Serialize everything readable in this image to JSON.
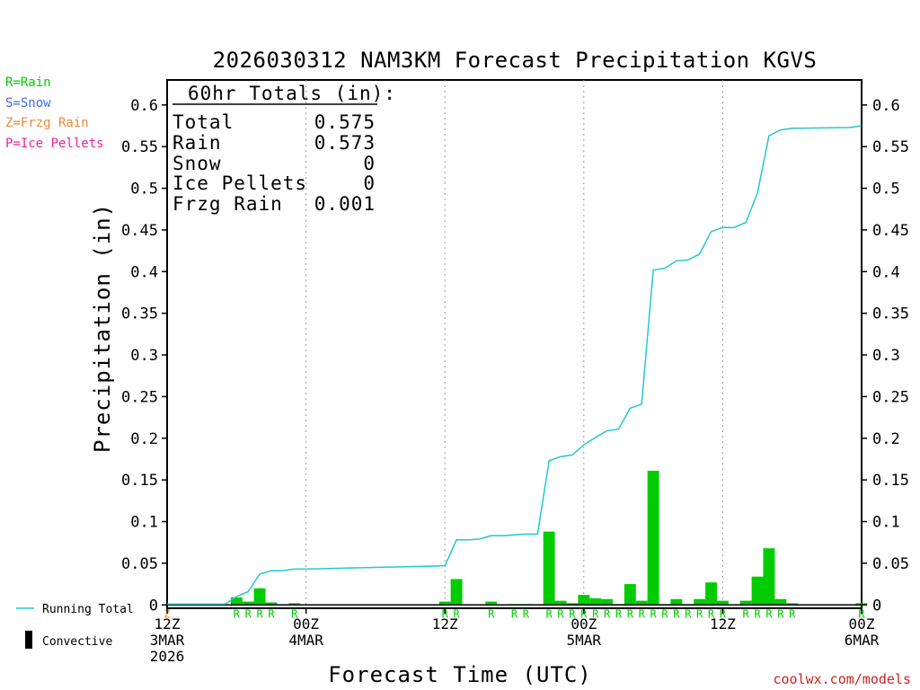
{
  "chart_data": {
    "type": "bar",
    "title": "2026030312 NAM3KM Forecast Precipitation KGVS",
    "ylabel": "Precipitation (in)",
    "xlabel": "Forecast Time (UTC)",
    "ylim": [
      -0.004,
      0.63
    ],
    "y_ticks": [
      0,
      0.05,
      0.1,
      0.15,
      0.2,
      0.25,
      0.3,
      0.35,
      0.4,
      0.45,
      0.5,
      0.55,
      0.6
    ],
    "y_tick_labels": [
      "0",
      "0.05",
      "0.1",
      "0.15",
      "0.2",
      "0.25",
      "0.3",
      "0.35",
      "0.4",
      "0.45",
      "0.5",
      "0.55",
      "0.6"
    ],
    "x_range_hours": [
      0,
      60
    ],
    "x_ticks": [
      {
        "hour": 0,
        "lines": [
          "12Z",
          "3MAR",
          "2026"
        ]
      },
      {
        "hour": 12,
        "lines": [
          "00Z",
          "4MAR"
        ]
      },
      {
        "hour": 24,
        "lines": [
          "12Z"
        ]
      },
      {
        "hour": 36,
        "lines": [
          "00Z",
          "5MAR"
        ]
      },
      {
        "hour": 48,
        "lines": [
          "12Z"
        ]
      },
      {
        "hour": 60,
        "lines": [
          "00Z",
          "6MAR"
        ]
      }
    ],
    "hourly_precip": [
      {
        "hour": 6,
        "value": 0.009,
        "type": "R"
      },
      {
        "hour": 7,
        "value": 0.004,
        "type": "R"
      },
      {
        "hour": 8,
        "value": 0.02,
        "type": "R"
      },
      {
        "hour": 9,
        "value": 0.003,
        "type": "R"
      },
      {
        "hour": 11,
        "value": 0.002,
        "type": "R"
      },
      {
        "hour": 24,
        "value": 0.004,
        "type": "R"
      },
      {
        "hour": 25,
        "value": 0.031,
        "type": "R"
      },
      {
        "hour": 28,
        "value": 0.004,
        "type": "R"
      },
      {
        "hour": 30,
        "value": 0.001,
        "type": "R"
      },
      {
        "hour": 31,
        "value": 0.001,
        "type": "R"
      },
      {
        "hour": 33,
        "value": 0.088,
        "type": "R"
      },
      {
        "hour": 34,
        "value": 0.005,
        "type": "R"
      },
      {
        "hour": 35,
        "value": 0.002,
        "type": "R"
      },
      {
        "hour": 36,
        "value": 0.012,
        "type": "R"
      },
      {
        "hour": 37,
        "value": 0.008,
        "type": "R"
      },
      {
        "hour": 38,
        "value": 0.007,
        "type": "R"
      },
      {
        "hour": 39,
        "value": 0.001,
        "type": "R"
      },
      {
        "hour": 40,
        "value": 0.025,
        "type": "R"
      },
      {
        "hour": 41,
        "value": 0.005,
        "type": "R"
      },
      {
        "hour": 42,
        "value": 0.161,
        "type": "R"
      },
      {
        "hour": 43,
        "value": 0.001,
        "type": "R"
      },
      {
        "hour": 44,
        "value": 0.007,
        "type": "R"
      },
      {
        "hour": 45,
        "value": 0.001,
        "type": "R"
      },
      {
        "hour": 46,
        "value": 0.007,
        "type": "R"
      },
      {
        "hour": 47,
        "value": 0.027,
        "type": "R"
      },
      {
        "hour": 48,
        "value": 0.005,
        "type": "R"
      },
      {
        "hour": 50,
        "value": 0.005,
        "type": "R"
      },
      {
        "hour": 51,
        "value": 0.034,
        "type": "R"
      },
      {
        "hour": 52,
        "value": 0.068,
        "type": "R"
      },
      {
        "hour": 53,
        "value": 0.007,
        "type": "R"
      },
      {
        "hour": 54,
        "value": 0.002,
        "type": "R"
      },
      {
        "hour": 60,
        "value": 0.002,
        "type": "R"
      }
    ],
    "type_markers": [
      {
        "hour": 0,
        "type": "Z"
      }
    ],
    "running_total": {
      "hours": [
        0,
        1,
        2,
        3,
        4,
        5,
        6,
        7,
        8,
        9,
        10,
        11,
        12,
        24,
        25,
        26,
        27,
        28,
        29,
        30,
        31,
        32,
        33,
        34,
        35,
        36,
        37,
        38,
        39,
        40,
        41,
        42,
        43,
        44,
        45,
        46,
        47,
        48,
        49,
        50,
        51,
        52,
        53,
        54,
        59,
        60
      ],
      "values": [
        0.001,
        0.001,
        0.001,
        0.001,
        0.001,
        0.001,
        0.01,
        0.016,
        0.037,
        0.041,
        0.041,
        0.043,
        0.043,
        0.047,
        0.078,
        0.078,
        0.079,
        0.083,
        0.083,
        0.084,
        0.085,
        0.085,
        0.173,
        0.178,
        0.18,
        0.192,
        0.201,
        0.209,
        0.211,
        0.236,
        0.241,
        0.402,
        0.404,
        0.413,
        0.414,
        0.421,
        0.448,
        0.453,
        0.453,
        0.459,
        0.494,
        0.563,
        0.57,
        0.572,
        0.573,
        0.575
      ]
    }
  },
  "legend_left": {
    "rain": "R=Rain",
    "snow": "S=Snow",
    "frzg": "Z=Frzg Rain",
    "pellets": "P=Ice Pellets"
  },
  "legend_bottom": {
    "running_total": "Running Total",
    "convective": "Convective"
  },
  "totals_box": {
    "header": "60hr Totals (in):",
    "rows": [
      {
        "label": "Total",
        "value": "0.575"
      },
      {
        "label": "Rain",
        "value": "0.573"
      },
      {
        "label": "Snow",
        "value": "0"
      },
      {
        "label": "Ice Pellets",
        "value": "0"
      },
      {
        "label": "Frzg Rain",
        "value": "0.001"
      }
    ]
  },
  "credit": "coolwx.com/models",
  "colors": {
    "rain": "#00cc00",
    "snow": "#4466ee",
    "frzg": "#ee8833",
    "pellets": "#ee2299",
    "running_total": "#22c8d0",
    "credit": "#cc2222"
  }
}
